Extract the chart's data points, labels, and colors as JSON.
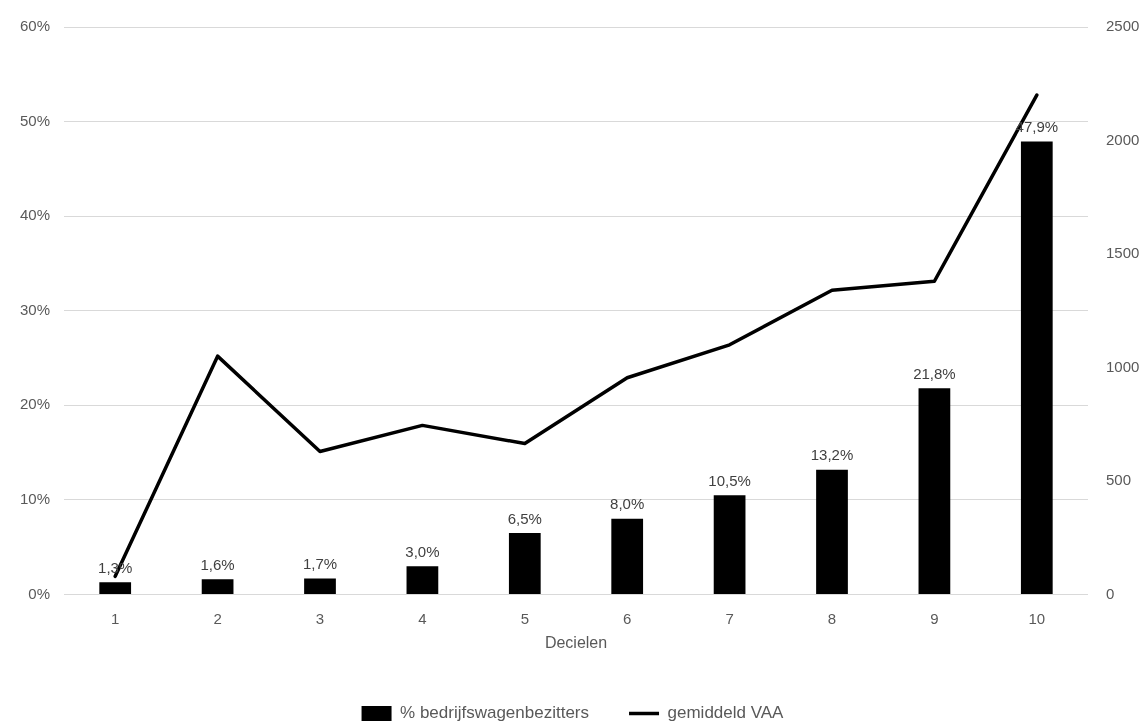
{
  "chart_data": {
    "type": "bar",
    "categories": [
      "1",
      "2",
      "3",
      "4",
      "5",
      "6",
      "7",
      "8",
      "9",
      "10"
    ],
    "series": [
      {
        "name": "% bedrijfswagenbezitters",
        "type": "bar",
        "color": "#000000",
        "values": [
          1.3,
          1.6,
          1.7,
          3.0,
          6.5,
          8.0,
          10.5,
          13.2,
          21.8,
          47.9
        ],
        "value_labels": [
          "1,3%",
          "1,6%",
          "1,7%",
          "3,0%",
          "6,5%",
          "8,0%",
          "10,5%",
          "13,2%",
          "21,8%",
          "47,9%"
        ]
      },
      {
        "name": "gemiddeld VAA",
        "type": "line",
        "axis": "y2",
        "color": "#000000",
        "values": [
          80,
          1050,
          630,
          745,
          665,
          955,
          1100,
          1340,
          1380,
          2200
        ]
      }
    ],
    "xlabel": "Decielen",
    "ylim": [
      0,
      60
    ],
    "yticks": [
      {
        "value": 0,
        "label": "0%"
      },
      {
        "value": 10,
        "label": "10%"
      },
      {
        "value": 20,
        "label": "20%"
      },
      {
        "value": 30,
        "label": "30%"
      },
      {
        "value": 40,
        "label": "40%"
      },
      {
        "value": 50,
        "label": "50%"
      },
      {
        "value": 60,
        "label": "60%"
      }
    ],
    "y2lim": [
      0,
      2500
    ],
    "y2ticks": [
      0,
      500,
      1000,
      1500,
      2000,
      2500
    ],
    "grid": "y",
    "legend": "bottom",
    "marker": "none"
  }
}
